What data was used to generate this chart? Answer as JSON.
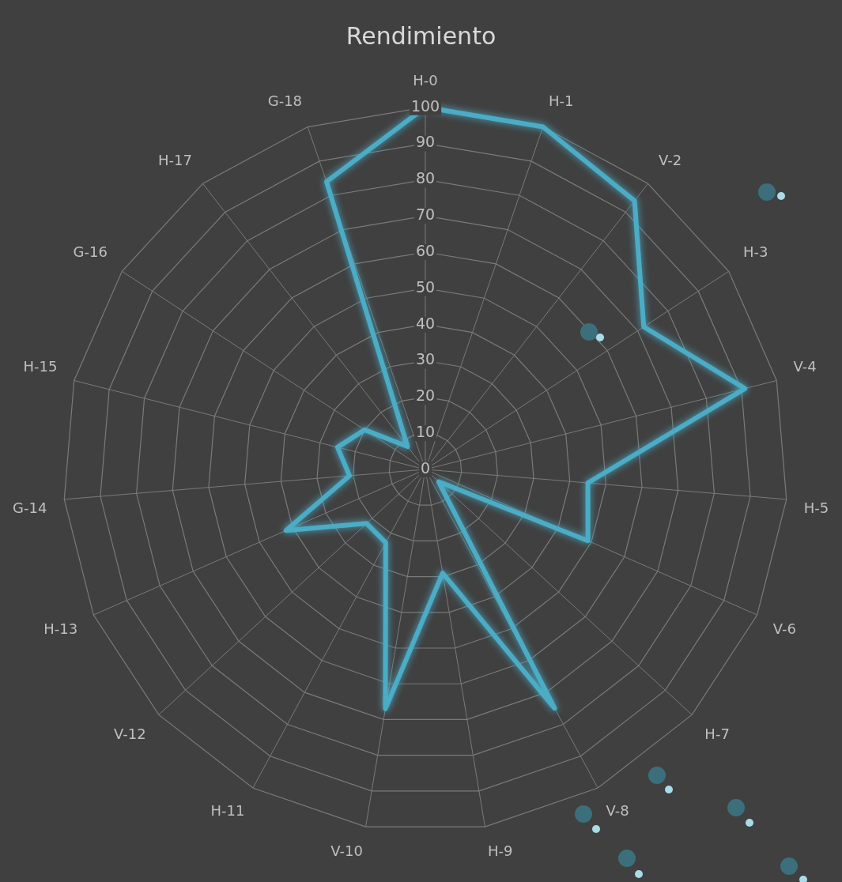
{
  "chart_data": {
    "type": "radar",
    "title": "Rendimiento",
    "categories": [
      "H-0",
      "H-1",
      "V-2",
      "H-3",
      "V-4",
      "H-5",
      "V-6",
      "H-7",
      "V-8",
      "H-9",
      "V-10",
      "H-11",
      "V-12",
      "H-13",
      "G-14",
      "H-15",
      "G-16",
      "H-17",
      "G-18"
    ],
    "series": [
      {
        "color": "#4bacc6",
        "values": [
          100,
          100,
          94,
          72,
          91,
          45,
          49,
          5,
          75,
          29,
          67,
          23,
          22,
          42,
          21,
          25,
          20,
          8,
          84
        ]
      }
    ],
    "ylim": [
      0,
      100
    ],
    "yticks": [
      0,
      10,
      20,
      30,
      40,
      50,
      60,
      70,
      80,
      90,
      100
    ],
    "grid": true,
    "legend": false,
    "marker": "none"
  }
}
